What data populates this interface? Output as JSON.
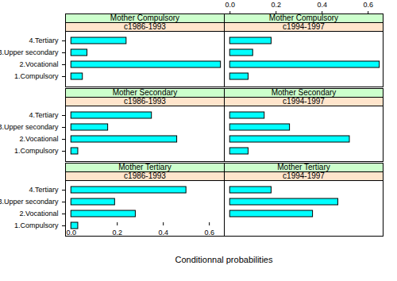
{
  "chart_data": {
    "type": "bar",
    "orientation": "horizontal",
    "color": "#00ffff",
    "x_label": "Conditionnal probabilities",
    "xlim": [
      -0.025,
      0.665
    ],
    "xticks": [
      {
        "value": 0,
        "label": "0.0"
      },
      0.2,
      0.4,
      0.6
    ],
    "categories": [
      "4.Tertiary",
      "3.Upper secondary",
      "2.Vocational",
      "1.Compulsory"
    ],
    "panels": [
      {
        "row": "Mother Compulsory",
        "column": "c1986-1993",
        "values": [
          0.24,
          0.07,
          0.65,
          0.05
        ]
      },
      {
        "row": "Mother Compulsory",
        "column": "c1994-1997",
        "values": [
          0.18,
          0.1,
          0.65,
          0.08
        ]
      },
      {
        "row": "Mother Secondary",
        "column": "c1986-1993",
        "values": [
          0.35,
          0.16,
          0.46,
          0.03
        ]
      },
      {
        "row": "Mother Secondary",
        "column": "c1994-1997",
        "values": [
          0.15,
          0.26,
          0.52,
          0.08
        ]
      },
      {
        "row": "Mother Tertiary",
        "column": "c1986-1993",
        "values": [
          0.5,
          0.19,
          0.28,
          0.03
        ]
      },
      {
        "row": "Mother Tertiary",
        "column": "c1994-1997",
        "values": [
          0.18,
          0.47,
          0.36,
          0
        ]
      }
    ]
  }
}
